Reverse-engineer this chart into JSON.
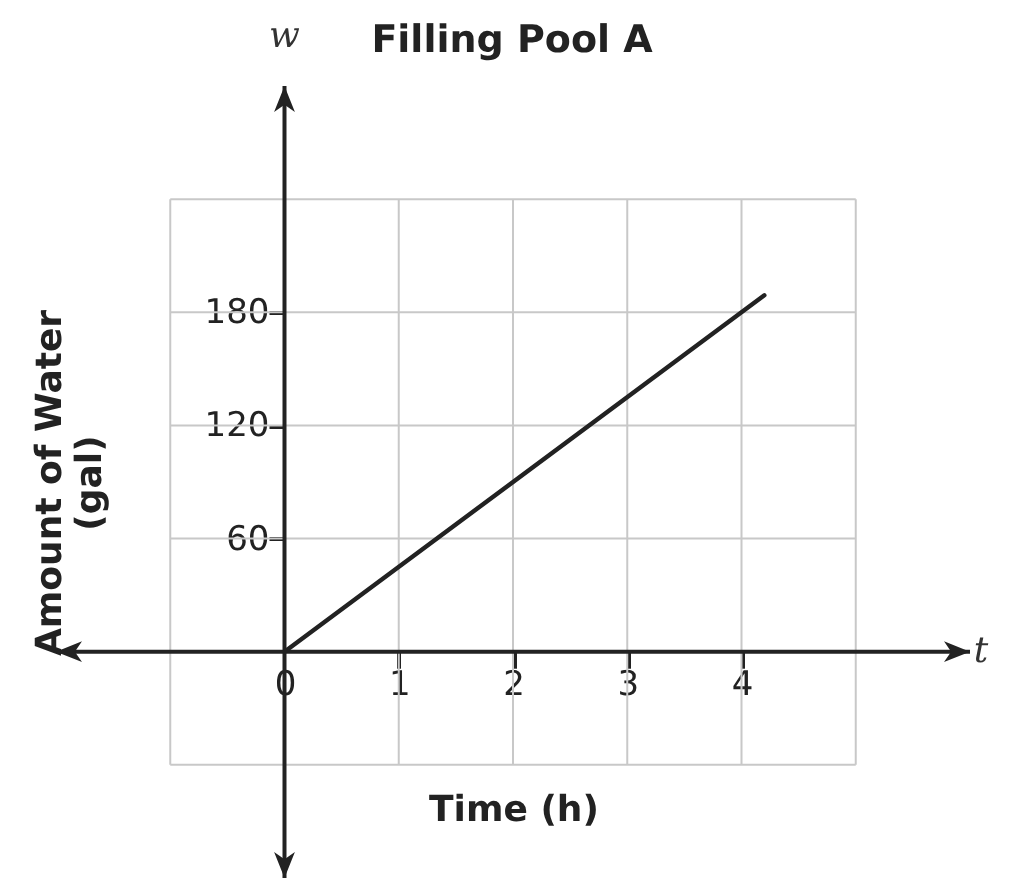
{
  "chart_data": {
    "type": "line",
    "title": "Filling Pool A",
    "xlabel": "Time (h)",
    "ylabel": "Amount of Water\n(gal)",
    "annotations": [
      "w",
      "t"
    ],
    "x": [
      0,
      4.2
    ],
    "series": [
      {
        "color": "#222222",
        "values": [
          0,
          189
        ]
      }
    ],
    "xlim": [
      -2,
      6
    ],
    "ylim": [
      -120,
      300
    ],
    "xticks": [
      {
        "value": -1,
        "label": null
      },
      0,
      1,
      2,
      3,
      4,
      {
        "value": 5,
        "label": null
      }
    ],
    "yticks": [
      {
        "value": -60,
        "label": null
      },
      {
        "value": 0,
        "label": null
      },
      60,
      120,
      180,
      {
        "value": 240,
        "label": null
      }
    ],
    "grid": true,
    "legend": false,
    "marker": "none",
    "line_style": "solid"
  }
}
